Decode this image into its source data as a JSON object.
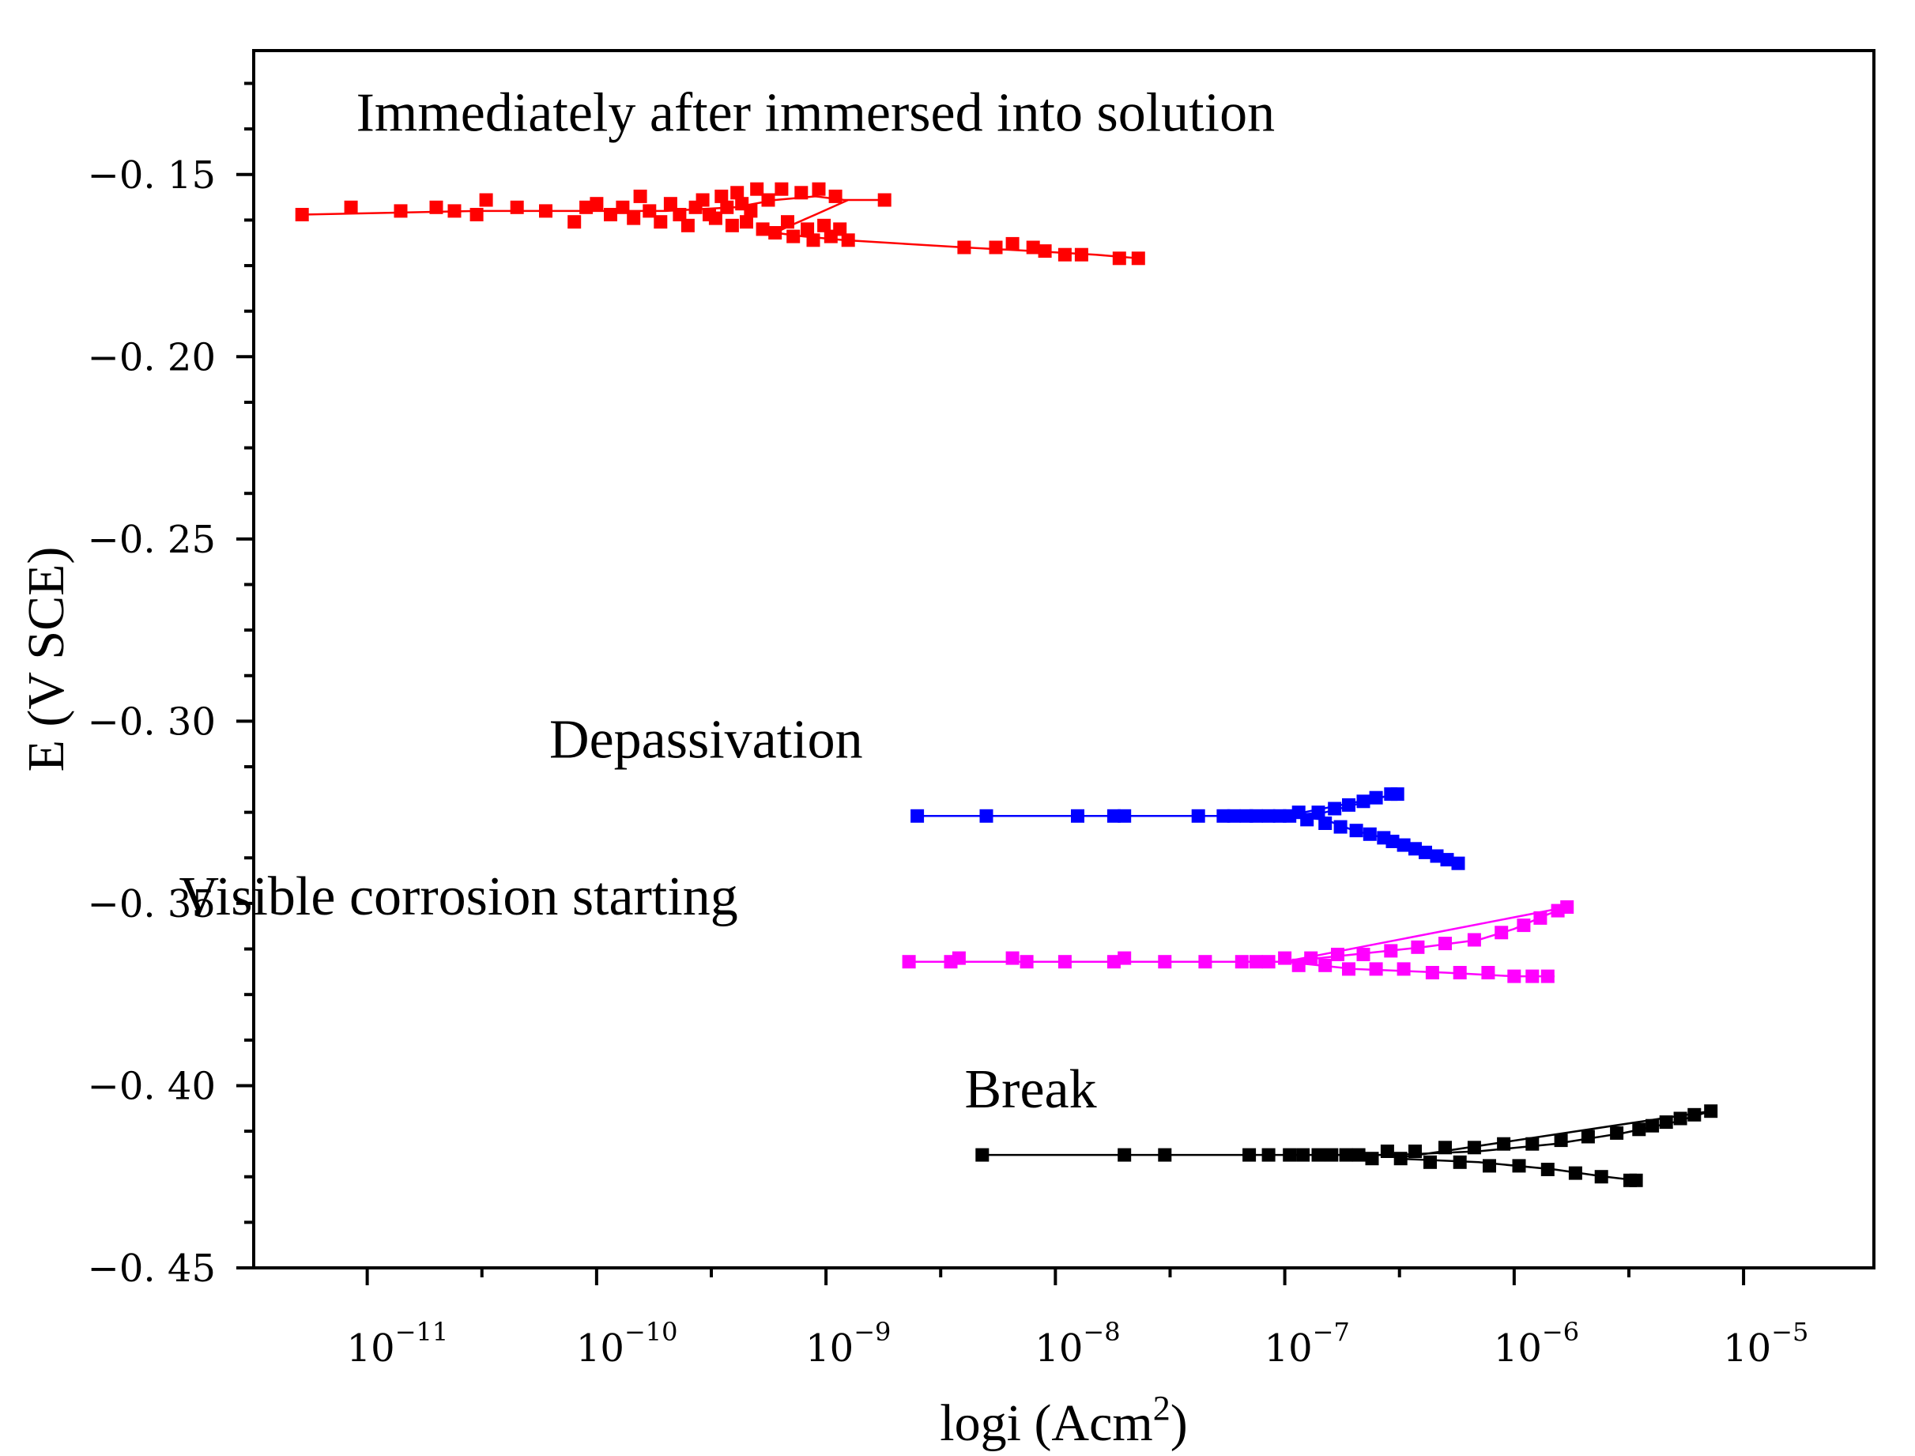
{
  "chart_data": {
    "type": "scatter",
    "title": "",
    "xlabel": "logi (Acm",
    "xlabel_sup": "2",
    "xlabel_close": ")",
    "ylabel": "E (V SCE)",
    "x_scale": "log",
    "xlim": [
      3.2e-12,
      3.7e-05
    ],
    "ylim": [
      -0.45,
      -0.116
    ],
    "x_ticks": [
      {
        "base": "10",
        "exp": "−11",
        "value": 1e-11
      },
      {
        "base": "10",
        "exp": "−10",
        "value": 1e-10
      },
      {
        "base": "10",
        "exp": "−9",
        "value": 1e-09
      },
      {
        "base": "10",
        "exp": "−8",
        "value": 1e-08
      },
      {
        "base": "10",
        "exp": "−7",
        "value": 1e-07
      },
      {
        "base": "10",
        "exp": "−6",
        "value": 1e-06
      },
      {
        "base": "10",
        "exp": "−5",
        "value": 1e-05
      }
    ],
    "y_ticks": [
      {
        "label": "−0. 15",
        "value": -0.15
      },
      {
        "label": "−0. 20",
        "value": -0.2
      },
      {
        "label": "−0. 25",
        "value": -0.25
      },
      {
        "label": "−0. 30",
        "value": -0.3
      },
      {
        "label": "−0. 35",
        "value": -0.35
      },
      {
        "label": "−0. 40",
        "value": -0.4
      },
      {
        "label": "−0. 45",
        "value": -0.45
      }
    ],
    "grid": false,
    "series": [
      {
        "name": "Immediately after immersed into solution",
        "color": "#ff0000",
        "points": [
          [
            5.2e-12,
            -0.161
          ],
          [
            8.5e-12,
            -0.159
          ],
          [
            1.4e-11,
            -0.16
          ],
          [
            2e-11,
            -0.159
          ],
          [
            2.4e-11,
            -0.16
          ],
          [
            3e-11,
            -0.161
          ],
          [
            3.3e-11,
            -0.157
          ],
          [
            4.5e-11,
            -0.159
          ],
          [
            6e-11,
            -0.16
          ],
          [
            8e-11,
            -0.163
          ],
          [
            9e-11,
            -0.159
          ],
          [
            1e-10,
            -0.158
          ],
          [
            1.15e-10,
            -0.161
          ],
          [
            1.3e-10,
            -0.159
          ],
          [
            1.45e-10,
            -0.162
          ],
          [
            1.55e-10,
            -0.156
          ],
          [
            1.7e-10,
            -0.16
          ],
          [
            1.9e-10,
            -0.163
          ],
          [
            2.1e-10,
            -0.158
          ],
          [
            2.3e-10,
            -0.161
          ],
          [
            2.5e-10,
            -0.164
          ],
          [
            2.7e-10,
            -0.159
          ],
          [
            2.9e-10,
            -0.157
          ],
          [
            3.1e-10,
            -0.161
          ],
          [
            3.3e-10,
            -0.162
          ],
          [
            3.5e-10,
            -0.156
          ],
          [
            3.7e-10,
            -0.159
          ],
          [
            3.9e-10,
            -0.164
          ],
          [
            4.1e-10,
            -0.155
          ],
          [
            4.3e-10,
            -0.158
          ],
          [
            4.5e-10,
            -0.163
          ],
          [
            4.7e-10,
            -0.16
          ],
          [
            5e-10,
            -0.154
          ],
          [
            5.3e-10,
            -0.165
          ],
          [
            5.6e-10,
            -0.157
          ],
          [
            6e-10,
            -0.166
          ],
          [
            6.4e-10,
            -0.154
          ],
          [
            6.8e-10,
            -0.163
          ],
          [
            7.2e-10,
            -0.167
          ],
          [
            7.8e-10,
            -0.155
          ],
          [
            8.3e-10,
            -0.165
          ],
          [
            8.8e-10,
            -0.168
          ],
          [
            9.3e-10,
            -0.154
          ],
          [
            9.8e-10,
            -0.164
          ],
          [
            1.05e-09,
            -0.167
          ],
          [
            1.1e-09,
            -0.156
          ],
          [
            1.15e-09,
            -0.165
          ],
          [
            1.25e-09,
            -0.168
          ],
          [
            1.8e-09,
            -0.157
          ],
          [
            4e-09,
            -0.17
          ],
          [
            5.5e-09,
            -0.17
          ],
          [
            6.5e-09,
            -0.169
          ],
          [
            8e-09,
            -0.17
          ],
          [
            9e-09,
            -0.171
          ],
          [
            1.1e-08,
            -0.172
          ],
          [
            1.3e-08,
            -0.172
          ],
          [
            1.9e-08,
            -0.173
          ],
          [
            2.3e-08,
            -0.173
          ]
        ],
        "line": [
          [
            5.2e-12,
            -0.161
          ],
          [
            3e-11,
            -0.16
          ],
          [
            1e-10,
            -0.16
          ],
          [
            2e-10,
            -0.16
          ],
          [
            4e-10,
            -0.159
          ],
          [
            6e-10,
            -0.157
          ],
          [
            9e-10,
            -0.156
          ],
          [
            1.2e-09,
            -0.157
          ],
          [
            1.8e-09,
            -0.157
          ],
          [
            1.25e-09,
            -0.157
          ],
          [
            9e-10,
            -0.161
          ],
          [
            7e-10,
            -0.164
          ],
          [
            6e-10,
            -0.166
          ],
          [
            8e-10,
            -0.167
          ],
          [
            1.2e-09,
            -0.168
          ],
          [
            4e-09,
            -0.17
          ],
          [
            8e-09,
            -0.171
          ],
          [
            1.5e-08,
            -0.172
          ],
          [
            2.3e-08,
            -0.173
          ]
        ]
      },
      {
        "name": "Depassivation",
        "color": "#0000ff",
        "points": [
          [
            2.5e-09,
            -0.326
          ],
          [
            5e-09,
            -0.326
          ],
          [
            1.25e-08,
            -0.326
          ],
          [
            1.8e-08,
            -0.326
          ],
          [
            2e-08,
            -0.326
          ],
          [
            4.2e-08,
            -0.326
          ],
          [
            5.4e-08,
            -0.326
          ],
          [
            6e-08,
            -0.326
          ],
          [
            6.8e-08,
            -0.326
          ],
          [
            7.5e-08,
            -0.326
          ],
          [
            8.5e-08,
            -0.326
          ],
          [
            9.5e-08,
            -0.326
          ],
          [
            1.05e-07,
            -0.326
          ],
          [
            1.15e-07,
            -0.325
          ],
          [
            1.25e-07,
            -0.327
          ],
          [
            1.4e-07,
            -0.325
          ],
          [
            1.5e-07,
            -0.328
          ],
          [
            1.65e-07,
            -0.324
          ],
          [
            1.75e-07,
            -0.329
          ],
          [
            1.9e-07,
            -0.323
          ],
          [
            2.05e-07,
            -0.33
          ],
          [
            2.2e-07,
            -0.322
          ],
          [
            2.35e-07,
            -0.331
          ],
          [
            2.5e-07,
            -0.321
          ],
          [
            2.7e-07,
            -0.332
          ],
          [
            2.9e-07,
            -0.32
          ],
          [
            3.1e-07,
            -0.32
          ],
          [
            2.95e-07,
            -0.333
          ],
          [
            3.3e-07,
            -0.334
          ],
          [
            3.7e-07,
            -0.335
          ],
          [
            4.1e-07,
            -0.336
          ],
          [
            4.6e-07,
            -0.337
          ],
          [
            5.1e-07,
            -0.338
          ],
          [
            5.7e-07,
            -0.339
          ]
        ],
        "line": [
          [
            2.5e-09,
            -0.326
          ],
          [
            4e-08,
            -0.326
          ],
          [
            1e-07,
            -0.326
          ],
          [
            1.5e-07,
            -0.325
          ],
          [
            2e-07,
            -0.323
          ],
          [
            2.6e-07,
            -0.321
          ],
          [
            3.1e-07,
            -0.32
          ],
          [
            1e-07,
            -0.326
          ],
          [
            1.5e-07,
            -0.327
          ],
          [
            2e-07,
            -0.33
          ],
          [
            2.7e-07,
            -0.332
          ],
          [
            3.5e-07,
            -0.335
          ],
          [
            4.5e-07,
            -0.337
          ],
          [
            5.7e-07,
            -0.339
          ]
        ]
      },
      {
        "name": "Visible corrosion starting",
        "color": "#ff00ff",
        "points": [
          [
            2.3e-09,
            -0.366
          ],
          [
            3.5e-09,
            -0.366
          ],
          [
            3.8e-09,
            -0.365
          ],
          [
            6.5e-09,
            -0.365
          ],
          [
            7.5e-09,
            -0.366
          ],
          [
            1.1e-08,
            -0.366
          ],
          [
            1.8e-08,
            -0.366
          ],
          [
            2e-08,
            -0.365
          ],
          [
            3e-08,
            -0.366
          ],
          [
            4.5e-08,
            -0.366
          ],
          [
            6.5e-08,
            -0.366
          ],
          [
            7.5e-08,
            -0.366
          ],
          [
            8.5e-08,
            -0.366
          ],
          [
            1e-07,
            -0.365
          ],
          [
            1.15e-07,
            -0.367
          ],
          [
            1.3e-07,
            -0.365
          ],
          [
            1.5e-07,
            -0.367
          ],
          [
            1.7e-07,
            -0.364
          ],
          [
            1.9e-07,
            -0.368
          ],
          [
            2.2e-07,
            -0.364
          ],
          [
            2.5e-07,
            -0.368
          ],
          [
            2.9e-07,
            -0.363
          ],
          [
            3.3e-07,
            -0.368
          ],
          [
            3.8e-07,
            -0.362
          ],
          [
            4.4e-07,
            -0.369
          ],
          [
            5e-07,
            -0.361
          ],
          [
            5.8e-07,
            -0.369
          ],
          [
            6.7e-07,
            -0.36
          ],
          [
            7.7e-07,
            -0.369
          ],
          [
            8.8e-07,
            -0.358
          ],
          [
            1e-06,
            -0.37
          ],
          [
            1.1e-06,
            -0.356
          ],
          [
            1.2e-06,
            -0.37
          ],
          [
            1.3e-06,
            -0.354
          ],
          [
            1.4e-06,
            -0.37
          ],
          [
            1.55e-06,
            -0.352
          ],
          [
            1.7e-06,
            -0.351
          ]
        ],
        "line": [
          [
            2.3e-09,
            -0.366
          ],
          [
            5e-08,
            -0.366
          ],
          [
            1e-07,
            -0.366
          ],
          [
            2e-07,
            -0.364
          ],
          [
            4e-07,
            -0.362
          ],
          [
            7e-07,
            -0.36
          ],
          [
            1e-06,
            -0.357
          ],
          [
            1.4e-06,
            -0.353
          ],
          [
            1.7e-06,
            -0.351
          ],
          [
            1e-07,
            -0.366
          ],
          [
            2e-07,
            -0.368
          ],
          [
            5e-07,
            -0.369
          ],
          [
            1e-06,
            -0.37
          ],
          [
            1.5e-06,
            -0.37
          ]
        ]
      },
      {
        "name": "Break",
        "color": "#000000",
        "points": [
          [
            4.8e-09,
            -0.419
          ],
          [
            2e-08,
            -0.419
          ],
          [
            3e-08,
            -0.419
          ],
          [
            7e-08,
            -0.419
          ],
          [
            8.5e-08,
            -0.419
          ],
          [
            1.05e-07,
            -0.419
          ],
          [
            1.2e-07,
            -0.419
          ],
          [
            1.4e-07,
            -0.419
          ],
          [
            1.6e-07,
            -0.419
          ],
          [
            1.85e-07,
            -0.419
          ],
          [
            2.1e-07,
            -0.419
          ],
          [
            2.4e-07,
            -0.42
          ],
          [
            2.8e-07,
            -0.418
          ],
          [
            3.2e-07,
            -0.42
          ],
          [
            3.7e-07,
            -0.418
          ],
          [
            4.3e-07,
            -0.421
          ],
          [
            5e-07,
            -0.417
          ],
          [
            5.8e-07,
            -0.421
          ],
          [
            6.7e-07,
            -0.417
          ],
          [
            7.8e-07,
            -0.422
          ],
          [
            9e-07,
            -0.416
          ],
          [
            1.05e-06,
            -0.422
          ],
          [
            1.2e-06,
            -0.416
          ],
          [
            1.4e-06,
            -0.423
          ],
          [
            1.6e-06,
            -0.415
          ],
          [
            1.85e-06,
            -0.424
          ],
          [
            2.1e-06,
            -0.414
          ],
          [
            2.4e-06,
            -0.425
          ],
          [
            2.8e-06,
            -0.413
          ],
          [
            3.2e-06,
            -0.426
          ],
          [
            3.5e-06,
            -0.412
          ],
          [
            3.4e-06,
            -0.426
          ],
          [
            4e-06,
            -0.411
          ],
          [
            4.6e-06,
            -0.41
          ],
          [
            5.3e-06,
            -0.409
          ],
          [
            6.1e-06,
            -0.408
          ],
          [
            7.2e-06,
            -0.407
          ]
        ],
        "line": [
          [
            4.8e-09,
            -0.419
          ],
          [
            1e-07,
            -0.419
          ],
          [
            3e-07,
            -0.419
          ],
          [
            7e-07,
            -0.418
          ],
          [
            1.5e-06,
            -0.416
          ],
          [
            3e-06,
            -0.413
          ],
          [
            5e-06,
            -0.41
          ],
          [
            7.2e-06,
            -0.407
          ],
          [
            3e-07,
            -0.42
          ],
          [
            7e-07,
            -0.421
          ],
          [
            1.5e-06,
            -0.423
          ],
          [
            2.5e-06,
            -0.425
          ],
          [
            3.4e-06,
            -0.426
          ]
        ]
      }
    ],
    "annotations": [
      {
        "text": "Immediately after immersed into solution",
        "x": 9e-10,
        "y": -0.138
      },
      {
        "text": "Depassivation",
        "x": 3e-10,
        "y": -0.31
      },
      {
        "text": "Visible corrosion starting",
        "x": 2.5e-11,
        "y": -0.353
      },
      {
        "text": "Break",
        "x": 7.8e-09,
        "y": -0.406
      }
    ]
  }
}
